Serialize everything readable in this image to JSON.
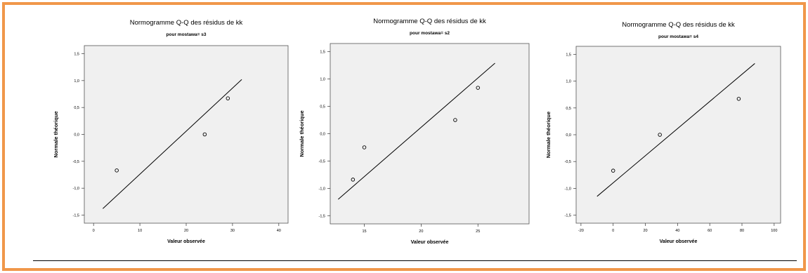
{
  "colors": {
    "frame_border": "#f0974a",
    "plot_background": "#f0f0f0",
    "point_stroke": "#000000",
    "line": "#000000"
  },
  "chart_data": [
    {
      "type": "scatter",
      "title": "Normogramme Q-Q des résidus de kk",
      "subtitle": "pour mostawa= s3",
      "xlabel": "Valeur observée",
      "ylabel": "Normale théorique",
      "xlim": [
        -2,
        42
      ],
      "ylim": [
        -1.65,
        1.65
      ],
      "xticks": [
        0,
        10,
        20,
        30,
        40
      ],
      "xtick_labels": [
        "0",
        "10",
        "20",
        "30",
        "40"
      ],
      "yticks": [
        1.5,
        1.0,
        0.5,
        0.0,
        -0.5,
        -1.0,
        -1.5
      ],
      "ytick_labels": [
        "1,5",
        "1,0",
        "0,5",
        "0,0",
        "-0,5",
        "-1,0",
        "-1,5"
      ],
      "points": [
        {
          "x": 5,
          "y": -0.67
        },
        {
          "x": 24,
          "y": 0.0
        },
        {
          "x": 29,
          "y": 0.67
        }
      ],
      "reference_line": [
        {
          "x": 2,
          "y": -1.38
        },
        {
          "x": 32,
          "y": 1.02
        }
      ]
    },
    {
      "type": "scatter",
      "title": "Normogramme Q-Q des résidus de kk",
      "subtitle": "pour mostawa= s2",
      "xlabel": "Valeur observée",
      "ylabel": "Normale théorique",
      "xlim": [
        12,
        29.5
      ],
      "ylim": [
        -1.65,
        1.65
      ],
      "xticks": [
        15,
        20,
        25
      ],
      "xtick_labels": [
        "15",
        "20",
        "25"
      ],
      "yticks": [
        1.5,
        1.0,
        0.5,
        0.0,
        -0.5,
        -1.0,
        -1.5
      ],
      "ytick_labels": [
        "1,5",
        "1,0",
        "0,5",
        "0,0",
        "-0,5",
        "-1,0",
        "-1,5"
      ],
      "points": [
        {
          "x": 14,
          "y": -0.84
        },
        {
          "x": 15,
          "y": -0.25
        },
        {
          "x": 23,
          "y": 0.25
        },
        {
          "x": 25,
          "y": 0.84
        }
      ],
      "reference_line": [
        {
          "x": 12.7,
          "y": -1.2
        },
        {
          "x": 26.5,
          "y": 1.29
        }
      ]
    },
    {
      "type": "scatter",
      "title": "Normogramme Q-Q des résidus de kk",
      "subtitle": "pour mostawa= s4",
      "xlabel": "Valeur observée",
      "ylabel": "Normale théorique",
      "xlim": [
        -23,
        104
      ],
      "ylim": [
        -1.65,
        1.65
      ],
      "xticks": [
        -20,
        0,
        20,
        40,
        60,
        80,
        100
      ],
      "xtick_labels": [
        "-20",
        "0",
        "20",
        "40",
        "60",
        "80",
        "100"
      ],
      "yticks": [
        1.5,
        1.0,
        0.5,
        0.0,
        -0.5,
        -1.0,
        -1.5
      ],
      "ytick_labels": [
        "1,5",
        "1,0",
        "0,5",
        "0,0",
        "-0,5",
        "-1,0",
        "-1,5"
      ],
      "points": [
        {
          "x": 0,
          "y": -0.67
        },
        {
          "x": 29,
          "y": 0.0
        },
        {
          "x": 78,
          "y": 0.67
        }
      ],
      "reference_line": [
        {
          "x": -10,
          "y": -1.15
        },
        {
          "x": 88,
          "y": 1.33
        }
      ]
    }
  ]
}
